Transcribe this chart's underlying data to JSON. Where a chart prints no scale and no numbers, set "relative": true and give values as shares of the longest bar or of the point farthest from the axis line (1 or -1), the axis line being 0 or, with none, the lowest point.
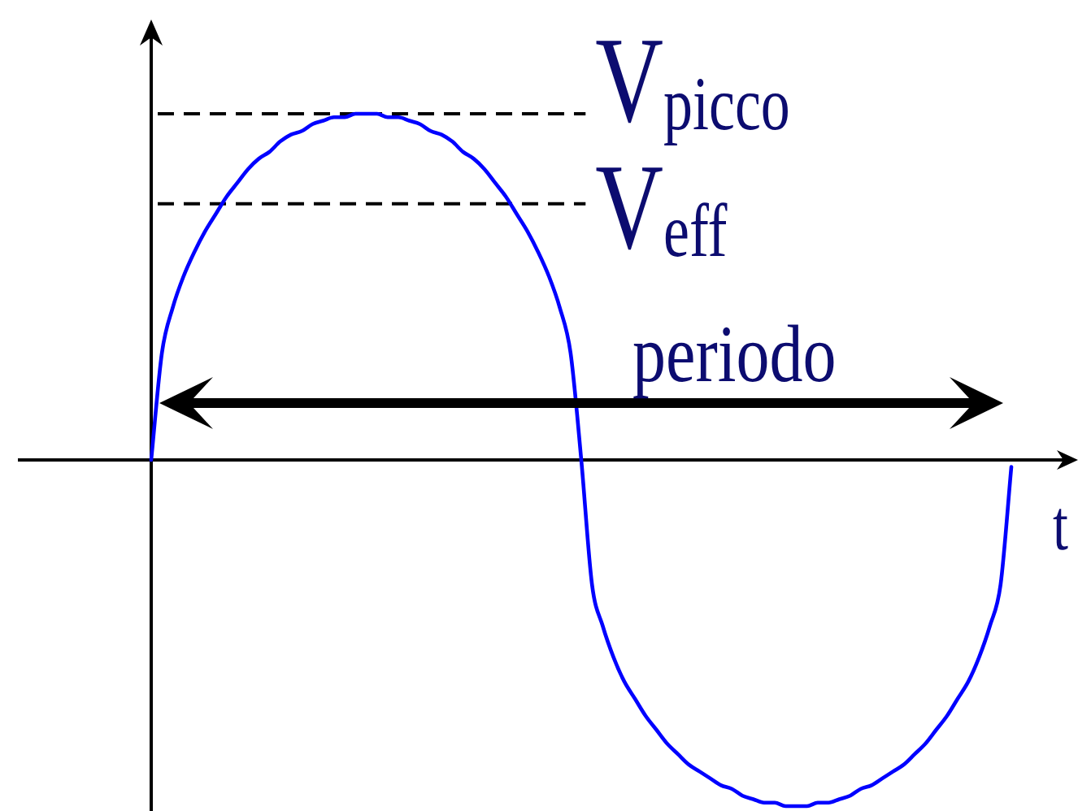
{
  "chart_data": {
    "type": "line",
    "xlabel": "t",
    "annotations": [
      "periodo"
    ],
    "categories": [
      null,
      null,
      null,
      null,
      null,
      null,
      null,
      null,
      null,
      null,
      null,
      null,
      null,
      null,
      null,
      null,
      null,
      null,
      null,
      null,
      null,
      null,
      null,
      null,
      null,
      null,
      null,
      null,
      null,
      null,
      null,
      null,
      null,
      null,
      null,
      null,
      null,
      null,
      null,
      null,
      null,
      null,
      null,
      null,
      null,
      null,
      null,
      null,
      null,
      null,
      null,
      null,
      null,
      null,
      null,
      null,
      null,
      null,
      null,
      null,
      null,
      null,
      null,
      null,
      null,
      null,
      null,
      null,
      null,
      null,
      null,
      null,
      null,
      null,
      null,
      null,
      null,
      null,
      null,
      null,
      null
    ],
    "values": [
      0,
      0.31,
      0.44,
      0.53,
      0.6,
      0.66,
      0.71,
      0.76,
      0.8,
      0.84,
      0.87,
      0.89,
      0.92,
      0.94,
      0.95,
      0.97,
      0.98,
      0.99,
      0.99,
      1,
      1,
      1,
      0.99,
      0.99,
      0.98,
      0.97,
      0.95,
      0.94,
      0.92,
      0.89,
      0.87,
      0.84,
      0.8,
      0.76,
      0.71,
      0.66,
      0.6,
      0.53,
      0.44,
      0.31,
      0,
      -0.36,
      -0.48,
      -0.57,
      -0.64,
      -0.69,
      -0.74,
      -0.78,
      -0.82,
      -0.85,
      -0.88,
      -0.9,
      -0.92,
      -0.94,
      -0.95,
      -0.97,
      -0.98,
      -0.99,
      -0.99,
      -1,
      -1,
      -1,
      -0.99,
      -0.99,
      -0.98,
      -0.97,
      -0.95,
      -0.94,
      -0.92,
      -0.9,
      -0.88,
      -0.85,
      -0.82,
      -0.78,
      -0.74,
      -0.69,
      -0.64,
      -0.57,
      -0.48,
      -0.36,
      -0.02
    ],
    "color": "#0000ff",
    "relative": true,
    "marker": "none",
    "line_style": "solid",
    "tick_labels": false,
    "ref_lines": [
      {
        "axis": "y",
        "value": 1,
        "label": "V$_{picco}$",
        "color": "#000000",
        "line_style": "dashed"
      },
      {
        "axis": "y",
        "value": 0.74,
        "label": "V$_{eff}$",
        "color": "#000000",
        "line_style": "dashed"
      }
    ]
  }
}
